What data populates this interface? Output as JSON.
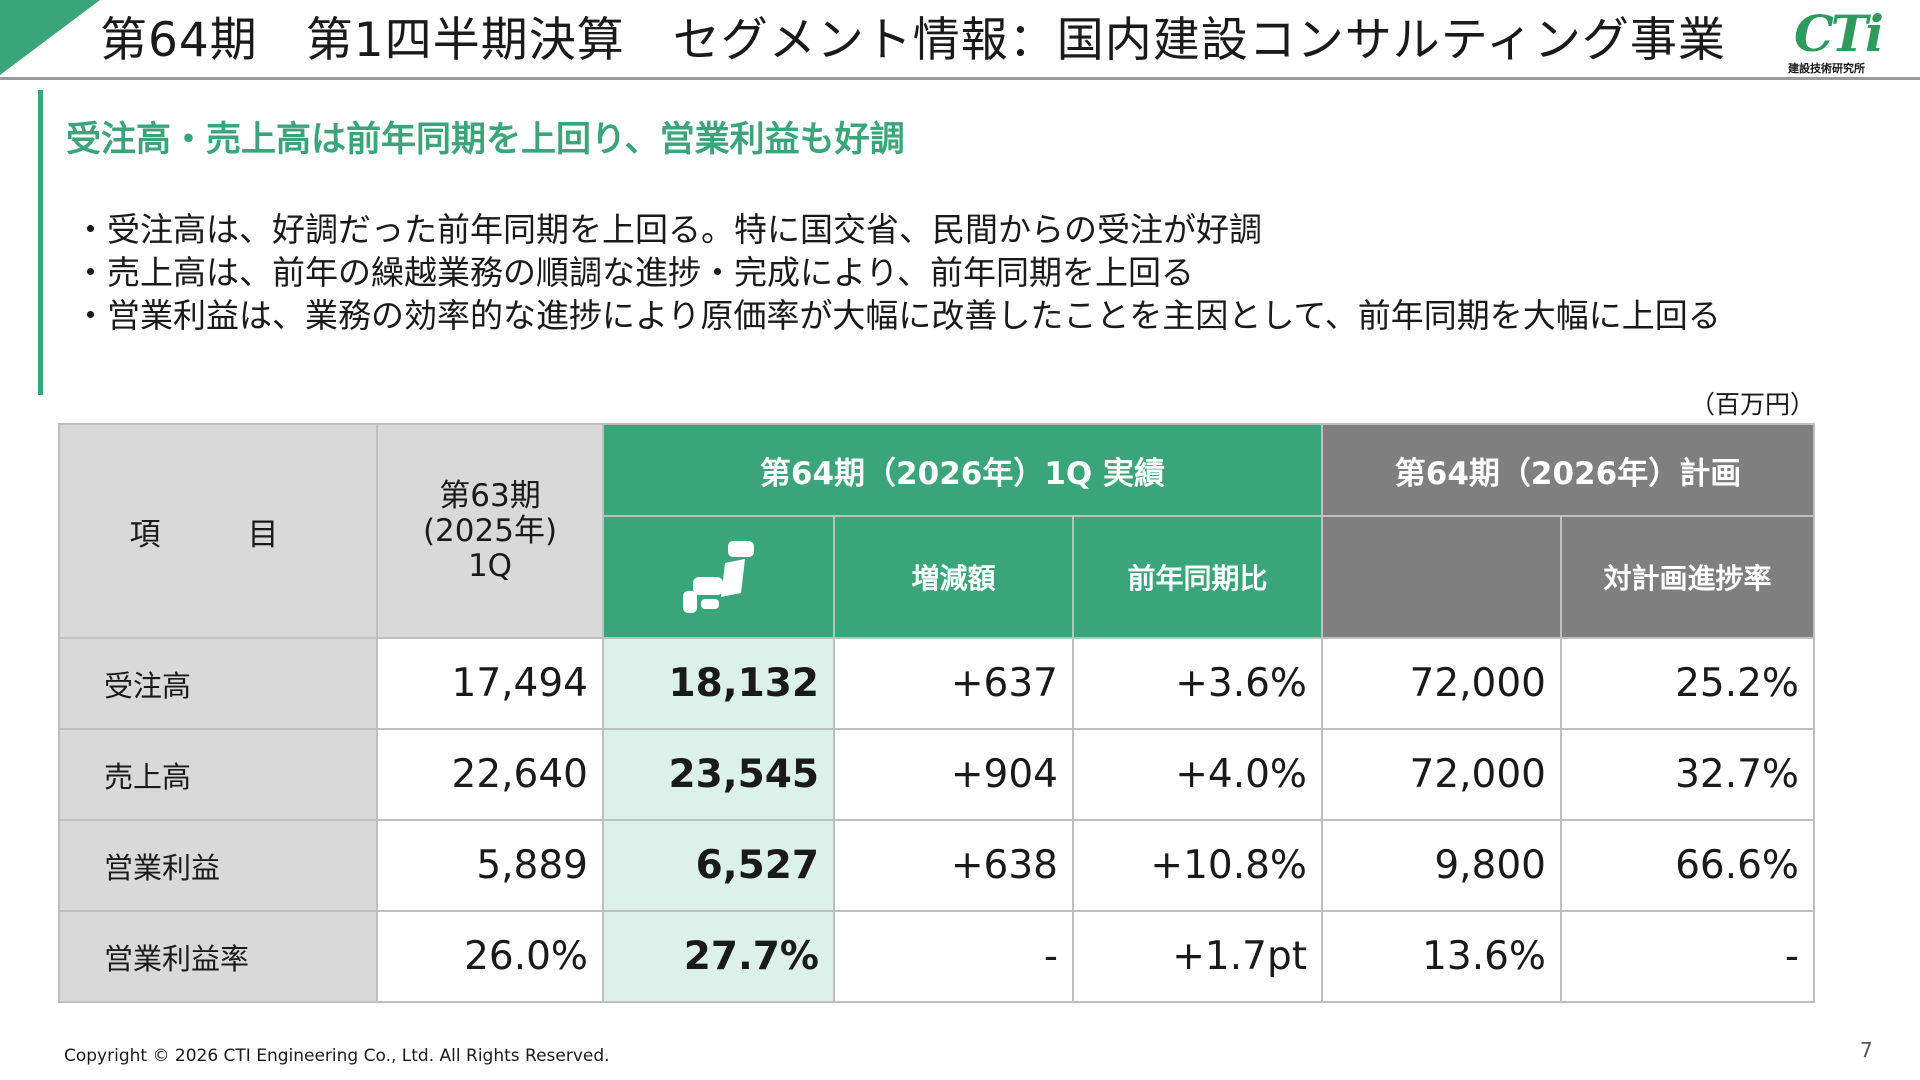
{
  "header": {
    "title": "第64期　第1四半期決算　セグメント情報：国内建設コンサルティング事業",
    "logo_mark": "CTi",
    "logo_sub": "建設技術研究所"
  },
  "headline": "受注高・売上高は前年同期を上回り、営業利益も好調",
  "bullets": [
    "・受注高は、好調だった前年同期を上回る。特に国交省、民間からの受注が好調",
    "・売上高は、前年の繰越業務の順調な進捗・完成により、前年同期を上回る",
    "・営業利益は、業務の効率的な進捗により原価率が大幅に改善したことを主因として、前年同期を大幅に上回る"
  ],
  "unit": "（百万円）",
  "table": {
    "item_header": "項　目",
    "prev_header": [
      "第63期",
      "(2025年)",
      "1Q"
    ],
    "actual_header": "第64期（2026年）1Q 実績",
    "change_header": "増減額",
    "yoy_header": "前年同期比",
    "plan_header": "第64期（2026年）計画",
    "progress_header": "対計画進捗率",
    "rows": [
      {
        "label": "受注高",
        "prev": "17,494",
        "actual": "18,132",
        "change": "+637",
        "yoy": "+3.6%",
        "plan": "72,000",
        "progress": "25.2%"
      },
      {
        "label": "売上高",
        "prev": "22,640",
        "actual": "23,545",
        "change": "+904",
        "yoy": "+4.0%",
        "plan": "72,000",
        "progress": "32.7%"
      },
      {
        "label": "営業利益",
        "prev": "5,889",
        "actual": "6,527",
        "change": "+638",
        "yoy": "+10.8%",
        "plan": "9,800",
        "progress": "66.6%"
      },
      {
        "label": "営業利益率",
        "prev": "26.0%",
        "actual": "27.7%",
        "change": "-",
        "yoy": "+1.7pt",
        "plan": "13.6%",
        "progress": "-"
      }
    ]
  },
  "footer": "Copyright © 2026 CTI Engineering Co., Ltd. All Rights Reserved.",
  "page_number": "7",
  "colors": {
    "accent_green": "#3aa57a",
    "header_gray": "#7f7f7f",
    "light_gray": "#d9d9d9",
    "highlight": "#dcf1ea"
  }
}
